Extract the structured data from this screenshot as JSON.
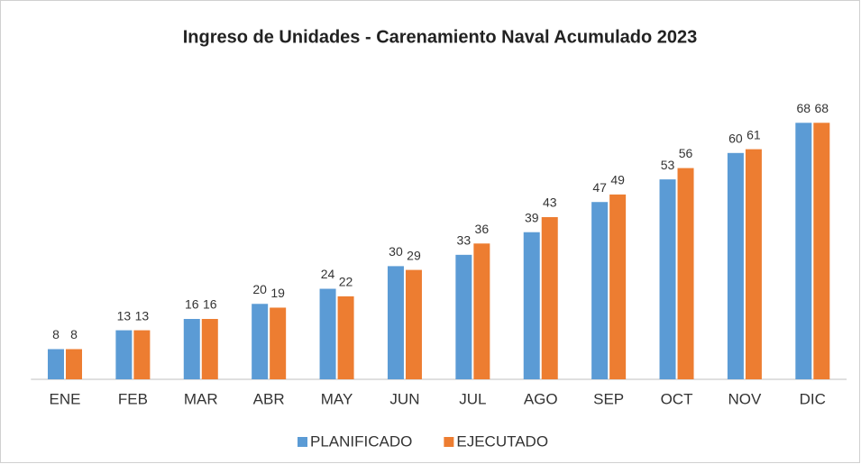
{
  "chart_data": {
    "type": "bar",
    "title": "Ingreso de Unidades - Carenamiento Naval Acumulado 2023",
    "categories": [
      "ENE",
      "FEB",
      "MAR",
      "ABR",
      "MAY",
      "JUN",
      "JUL",
      "AGO",
      "SEP",
      "OCT",
      "NOV",
      "DIC"
    ],
    "series": [
      {
        "name": "PLANIFICADO",
        "color": "#5b9bd5",
        "values": [
          8,
          13,
          16,
          20,
          24,
          30,
          33,
          39,
          47,
          53,
          60,
          68
        ]
      },
      {
        "name": "EJECUTADO",
        "color": "#ed7d31",
        "values": [
          8,
          13,
          16,
          19,
          22,
          29,
          36,
          43,
          49,
          56,
          61,
          68
        ]
      }
    ],
    "ylim": [
      0,
      75
    ],
    "legend": "bottom"
  }
}
